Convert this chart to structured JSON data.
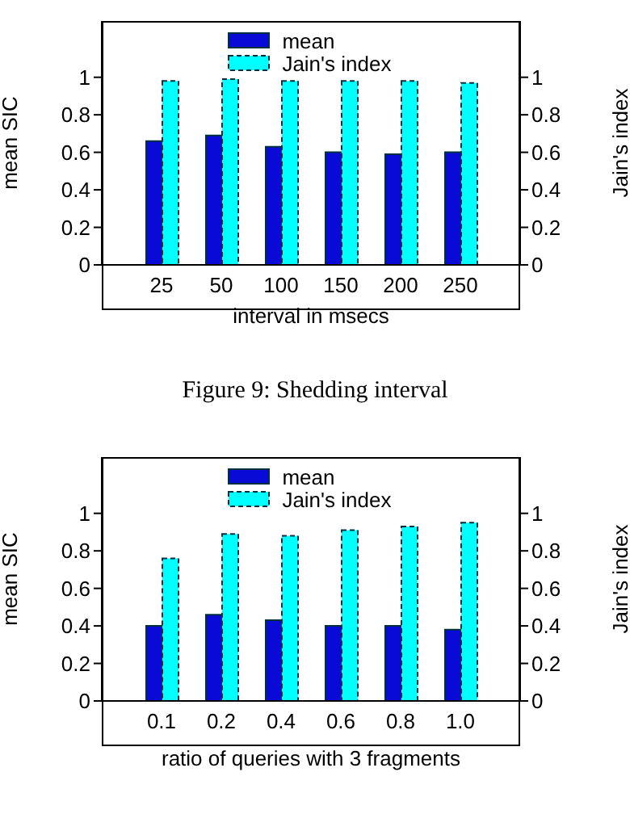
{
  "chart_data": [
    {
      "type": "bar",
      "ylabel": "mean SIC",
      "y2label": "Jain's index",
      "xlabel": "interval in msecs",
      "annotations": [
        "Figure 9: Shedding interval"
      ],
      "categories": [
        "25",
        "50",
        "100",
        "150",
        "200",
        "250"
      ],
      "series": [
        {
          "name": "mean",
          "color": "#0a0ad6",
          "values": [
            0.66,
            0.69,
            0.63,
            0.6,
            0.59,
            0.6
          ]
        },
        {
          "name": "Jain's index",
          "color": "#00ffff",
          "axis": "y2",
          "values": [
            0.98,
            0.99,
            0.98,
            0.98,
            0.98,
            0.97
          ]
        }
      ],
      "ylim": [
        0,
        1.3
      ],
      "yticks": [
        0,
        0.2,
        0.4,
        0.6,
        0.8,
        1
      ],
      "y2lim": [
        0,
        1.3
      ],
      "y2ticks": [
        0,
        0.2,
        0.4,
        0.6,
        0.8,
        1
      ],
      "grid": false,
      "legend": "top"
    },
    {
      "type": "bar",
      "ylabel": "mean SIC",
      "y2label": "Jain's index",
      "xlabel": "ratio of queries with 3 fragments",
      "categories": [
        "0.1",
        "0.2",
        "0.4",
        "0.6",
        "0.8",
        "1.0"
      ],
      "series": [
        {
          "name": "mean",
          "color": "#0a0ad6",
          "values": [
            0.4,
            0.46,
            0.43,
            0.4,
            0.4,
            0.38
          ]
        },
        {
          "name": "Jain's index",
          "color": "#00ffff",
          "axis": "y2",
          "values": [
            0.76,
            0.89,
            0.88,
            0.91,
            0.93,
            0.95
          ]
        }
      ],
      "ylim": [
        0,
        1.3
      ],
      "yticks": [
        0,
        0.2,
        0.4,
        0.6,
        0.8,
        1
      ],
      "y2lim": [
        0,
        1.3
      ],
      "y2ticks": [
        0,
        0.2,
        0.4,
        0.6,
        0.8,
        1
      ],
      "grid": false,
      "legend": "top"
    }
  ]
}
